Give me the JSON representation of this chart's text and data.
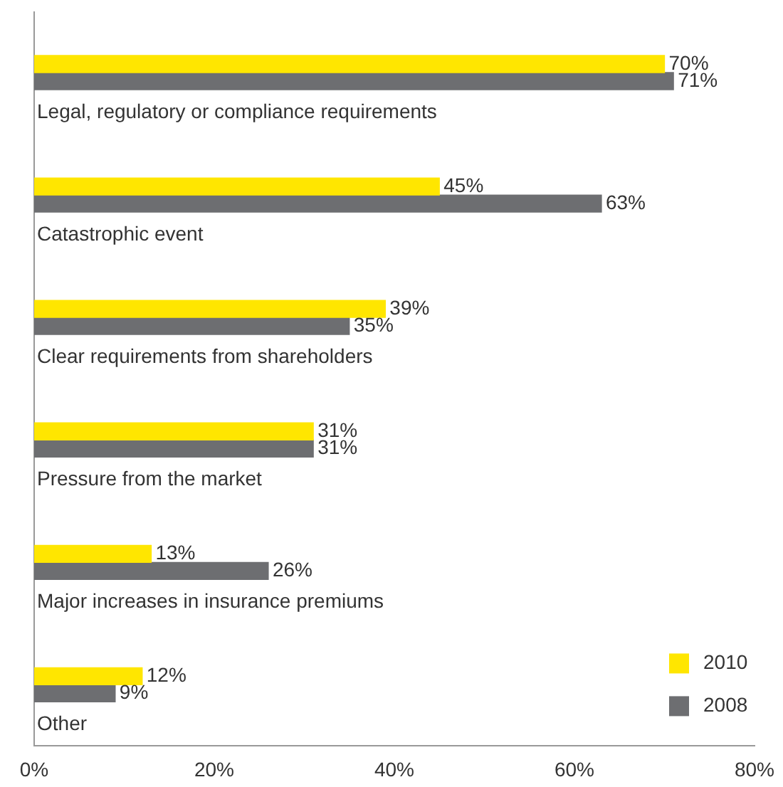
{
  "chart_data": {
    "type": "bar",
    "orientation": "horizontal",
    "categories": [
      "Legal, regulatory or compliance requirements",
      "Catastrophic event",
      "Clear requirements from shareholders",
      "Pressure from the market",
      "Major increases in insurance premiums",
      "Other"
    ],
    "series": [
      {
        "name": "2010",
        "color": "#ffe600",
        "values": [
          70,
          45,
          39,
          31,
          13,
          12
        ],
        "value_labels": [
          "70%",
          "45%",
          "39%",
          "31%",
          "13%",
          "12%"
        ]
      },
      {
        "name": "2008",
        "color": "#6d6e71",
        "values": [
          71,
          63,
          35,
          31,
          26,
          9
        ],
        "value_labels": [
          "71%",
          "63%",
          "35%",
          "31%",
          "26%",
          "9%"
        ]
      }
    ],
    "xlim": [
      0,
      80
    ],
    "xticks": [
      {
        "value": 0,
        "label": "0%"
      },
      {
        "value": 20,
        "label": "20%"
      },
      {
        "value": 40,
        "label": "40%"
      },
      {
        "value": 60,
        "label": "60%"
      },
      {
        "value": 80,
        "label": "80%"
      }
    ],
    "grid": false,
    "legend": "bottom right"
  }
}
